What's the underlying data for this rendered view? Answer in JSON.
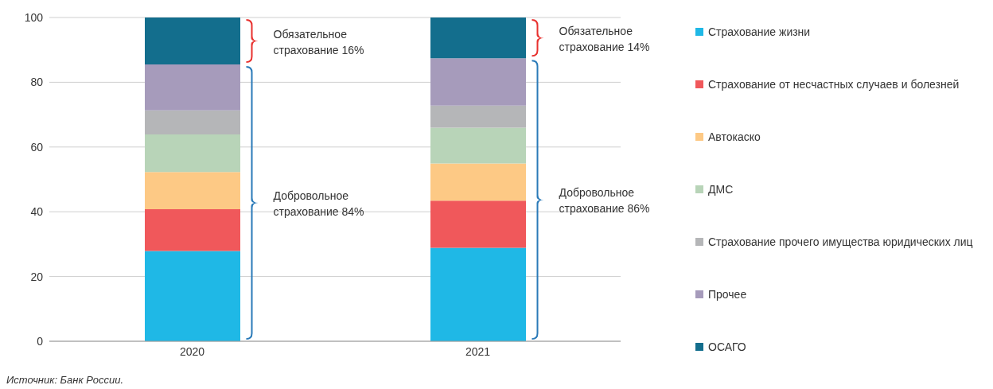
{
  "chart_data": {
    "type": "bar",
    "stacked": true,
    "categories": [
      "2020",
      "2021"
    ],
    "series": [
      {
        "name": "Страхование жизни",
        "color": "#1fb8e6",
        "values": [
          27.9,
          28.9
        ]
      },
      {
        "name": "Страхование от несчастных случаев и болезней",
        "color": "#f0585b",
        "values": [
          12.9,
          14.5
        ]
      },
      {
        "name": "Автокаско",
        "color": "#fdc985",
        "values": [
          11.5,
          11.5
        ]
      },
      {
        "name": "ДМС",
        "color": "#b8d4b8",
        "values": [
          11.6,
          11.1
        ]
      },
      {
        "name": "Страхование прочего имущества юридических лиц",
        "color": "#b5b6b8",
        "values": [
          7.4,
          6.8
        ]
      },
      {
        "name": "Прочее",
        "color": "#a69bbb",
        "values": [
          14.2,
          14.6
        ]
      },
      {
        "name": "ОСАГО",
        "color": "#136e8d",
        "values": [
          14.5,
          12.6
        ]
      }
    ],
    "ylim": [
      0,
      100
    ],
    "yticks": [
      0,
      20,
      40,
      60,
      80,
      100
    ],
    "grid": "y",
    "legend": "right",
    "annotations": [
      "Обязательное страхование 16%",
      "Добровольное страхование 84%",
      "Обязательное страхование 14%",
      "Добровольное страхование 86%",
      "Источник: Банк России."
    ]
  }
}
